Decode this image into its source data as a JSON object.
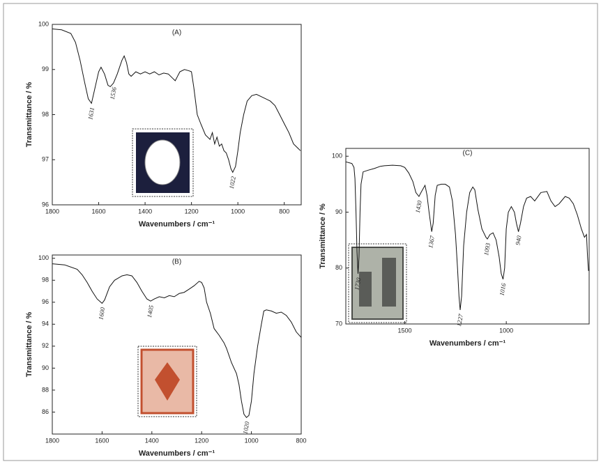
{
  "chart_data": [
    {
      "type": "line",
      "title": "(A)",
      "x_label": "Wavenumbers / cm⁻¹",
      "y_label": "Transmittance / %",
      "color": "#111111",
      "xlim": [
        1800,
        727
      ],
      "ylim": [
        96,
        100
      ],
      "xticks": [
        1800,
        1600,
        1400,
        1200,
        1000,
        800
      ],
      "yticks": [
        96,
        97,
        98,
        99,
        100
      ],
      "peak_labels": [
        1631,
        1536,
        1022
      ],
      "x": [
        1800,
        1760,
        1720,
        1700,
        1680,
        1660,
        1645,
        1631,
        1620,
        1600,
        1590,
        1575,
        1560,
        1550,
        1536,
        1520,
        1500,
        1490,
        1480,
        1470,
        1460,
        1440,
        1420,
        1400,
        1380,
        1360,
        1340,
        1320,
        1300,
        1280,
        1270,
        1250,
        1230,
        1210,
        1200,
        1190,
        1175,
        1160,
        1140,
        1120,
        1110,
        1100,
        1090,
        1080,
        1070,
        1060,
        1050,
        1040,
        1030,
        1022,
        1010,
        1000,
        990,
        975,
        960,
        940,
        920,
        900,
        880,
        860,
        840,
        820,
        800,
        780,
        760,
        740,
        730
      ],
      "values": [
        99.9,
        99.88,
        99.8,
        99.6,
        99.2,
        98.7,
        98.35,
        98.25,
        98.5,
        98.95,
        99.05,
        98.9,
        98.65,
        98.62,
        98.7,
        98.9,
        99.2,
        99.3,
        99.15,
        98.9,
        98.85,
        98.95,
        98.9,
        98.95,
        98.9,
        98.95,
        98.88,
        98.92,
        98.9,
        98.8,
        98.75,
        98.95,
        99.0,
        98.97,
        98.95,
        98.6,
        98.0,
        97.8,
        97.55,
        97.45,
        97.6,
        97.35,
        97.5,
        97.3,
        97.35,
        97.2,
        97.15,
        97.0,
        96.8,
        96.72,
        96.85,
        97.2,
        97.6,
        98.0,
        98.3,
        98.42,
        98.45,
        98.4,
        98.35,
        98.3,
        98.2,
        98.0,
        97.8,
        97.6,
        97.35,
        97.25,
        97.2
      ]
    },
    {
      "type": "line",
      "title": "(B)",
      "x_label": "Wavenumbers / cm⁻¹",
      "y_label": "Transmittance / %",
      "color": "#111111",
      "xlim": [
        1800,
        800
      ],
      "ylim": [
        84,
        100.3
      ],
      "xticks": [
        1800,
        1600,
        1400,
        1200,
        1000,
        800
      ],
      "yticks": [
        86,
        88,
        90,
        92,
        94,
        96,
        98,
        100
      ],
      "peak_labels": [
        1600,
        1405,
        1020
      ],
      "x": [
        1800,
        1750,
        1700,
        1680,
        1660,
        1640,
        1620,
        1600,
        1590,
        1570,
        1550,
        1520,
        1500,
        1480,
        1460,
        1440,
        1420,
        1405,
        1390,
        1370,
        1350,
        1330,
        1310,
        1290,
        1270,
        1250,
        1230,
        1210,
        1200,
        1190,
        1180,
        1165,
        1150,
        1130,
        1110,
        1100,
        1080,
        1060,
        1050,
        1040,
        1030,
        1020,
        1010,
        1000,
        990,
        975,
        960,
        950,
        940,
        920,
        900,
        880,
        860,
        840,
        820,
        800
      ],
      "values": [
        99.5,
        99.4,
        99.0,
        98.5,
        97.8,
        97.0,
        96.3,
        95.9,
        96.2,
        97.4,
        98.0,
        98.4,
        98.5,
        98.4,
        97.8,
        97.0,
        96.3,
        96.1,
        96.3,
        96.5,
        96.4,
        96.6,
        96.5,
        96.8,
        96.9,
        97.2,
        97.5,
        97.9,
        97.8,
        97.3,
        96.0,
        95.0,
        93.6,
        93.0,
        92.3,
        91.8,
        90.5,
        89.5,
        88.5,
        87.0,
        85.8,
        85.5,
        85.7,
        87.0,
        89.5,
        92.0,
        94.0,
        95.2,
        95.3,
        95.2,
        95.0,
        95.1,
        94.8,
        94.2,
        93.3,
        92.8
      ]
    },
    {
      "type": "line",
      "title": "(C)",
      "x_label": "Wavenumbers / cm⁻¹",
      "y_label": "Transmittance / %",
      "color": "#111111",
      "xlim": [
        1790,
        592
      ],
      "ylim": [
        70,
        101.4
      ],
      "xticks": [
        1500,
        1000
      ],
      "yticks": [
        70,
        80,
        90,
        100
      ],
      "peak_labels": [
        1730,
        1430,
        1367,
        1227,
        1093,
        1016,
        940
      ],
      "x": [
        1790,
        1770,
        1760,
        1750,
        1745,
        1740,
        1735,
        1730,
        1725,
        1720,
        1715,
        1705,
        1680,
        1650,
        1620,
        1600,
        1560,
        1520,
        1500,
        1480,
        1460,
        1445,
        1430,
        1420,
        1400,
        1390,
        1380,
        1367,
        1360,
        1350,
        1340,
        1320,
        1300,
        1280,
        1265,
        1250,
        1240,
        1233,
        1227,
        1220,
        1210,
        1195,
        1180,
        1165,
        1155,
        1140,
        1120,
        1100,
        1093,
        1080,
        1065,
        1050,
        1035,
        1025,
        1016,
        1008,
        1000,
        990,
        975,
        960,
        950,
        940,
        930,
        915,
        900,
        880,
        860,
        830,
        800,
        780,
        760,
        740,
        710,
        690,
        670,
        650,
        630,
        615,
        605,
        600,
        595
      ],
      "values": [
        99.0,
        98.8,
        98.7,
        98.0,
        96,
        90,
        83,
        79.0,
        82,
        90,
        95,
        97.2,
        97.5,
        97.8,
        98.2,
        98.3,
        98.4,
        98.3,
        98.0,
        97.0,
        95.5,
        93.5,
        92.8,
        93.5,
        94.8,
        93.0,
        90,
        86.5,
        88,
        93,
        94.8,
        95.0,
        95.0,
        94.5,
        92,
        86,
        80,
        75,
        72.5,
        75,
        84,
        90,
        93.5,
        94.5,
        94,
        90.5,
        87,
        85.5,
        85.2,
        86,
        86.3,
        85,
        82,
        79,
        78.0,
        80,
        87,
        90,
        91,
        90,
        88,
        86.5,
        88,
        91,
        92.5,
        92.8,
        92.0,
        93.5,
        93.7,
        92.0,
        91.0,
        91.5,
        92.8,
        92.5,
        91.5,
        89.5,
        87.0,
        85.5,
        86,
        82,
        79.5
      ]
    }
  ]
}
